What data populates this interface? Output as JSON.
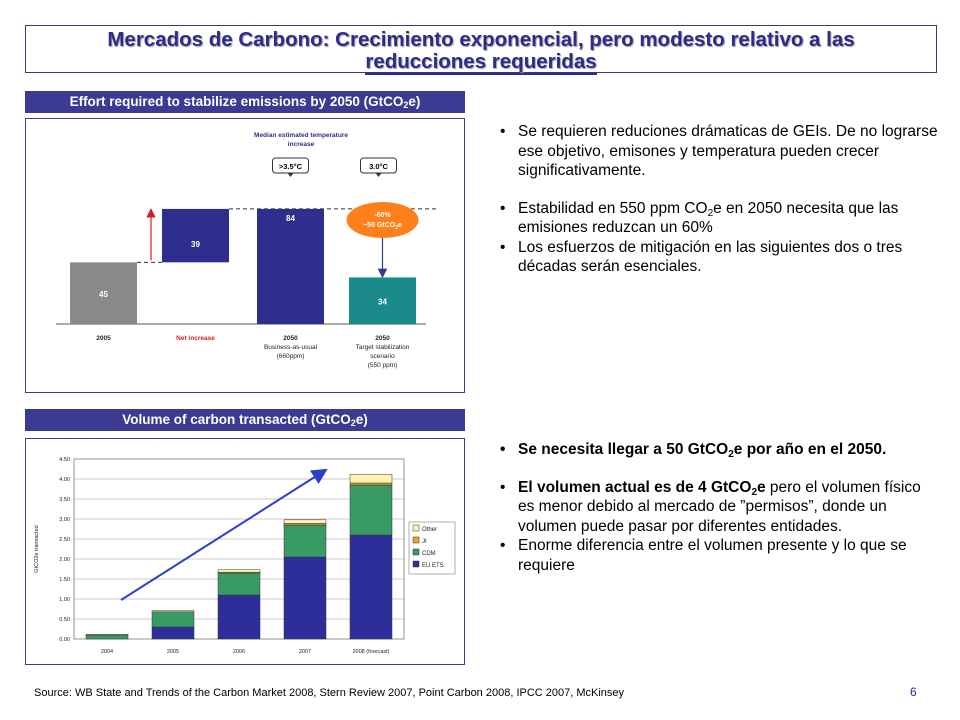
{
  "title": {
    "line1": "Mercados de Carbono: Crecimiento exponencial, pero modesto relativo a las",
    "line2": "reducciones requeridas"
  },
  "panel1": {
    "header_main": "Effort required to stabilize emissions by 2050 (GtCO",
    "header_sub": "2",
    "header_end": "e)"
  },
  "panel2": {
    "header_main": "Volume of carbon transacted (GtCO",
    "header_sub": "2",
    "header_end": "e)"
  },
  "bullets_top": [
    {
      "text": "Se requieren reduciones drámaticas de GEIs. De no lograrse ese objetivo, emisones y temperatura pueden crecer significativamente."
    },
    {
      "pre": "Estabilidad en 550 ppm CO",
      "sub": "2",
      "post": "e en 2050 necesita que las emisiones reduzcan un 60%"
    },
    {
      "text": "Los esfuerzos de mitigación en las siguientes dos o tres décadas serán esenciales."
    }
  ],
  "bullets_bottom": [
    {
      "pre": "Se necesita llegar a 50 GtCO",
      "sub": "2",
      "post": "e por año en el 2050."
    },
    {
      "pre": "El volumen actual es de 4 GtCO",
      "sub": "2",
      "post": "e",
      "rest": " pero el volumen físico es menor debido al mercado de ”permisos”, donde un volumen puede pasar por diferentes entidades."
    },
    {
      "text": "Enorme diferencia entre el volumen presente y lo que se requiere"
    }
  ],
  "source": "Source: WB State and Trends of the Carbon Market 2008, Stern Review 2007, Point Carbon 2008, IPCC 2007, McKinsey",
  "page_number": "6",
  "chart_data": [
    {
      "type": "bar",
      "subtype": "waterfall",
      "annotation_title": "Median estimated temperature increase",
      "categories": [
        "2005",
        "Net increase",
        "2050 Business-as-usual (660ppm)",
        "2050 Target stabilization scenario (550 ppm)"
      ],
      "category_lines": [
        [
          "2005"
        ],
        [
          "Net increase"
        ],
        [
          "2050",
          "Business-as-usual",
          "(660ppm)"
        ],
        [
          "2050",
          "Target stabilization",
          "scenario",
          "(550 ppm)"
        ]
      ],
      "values": [
        45,
        39,
        84,
        34
      ],
      "bar_colors": [
        "#8a8a8a",
        "#2e2e8e",
        "#2e2e8e",
        "#1a8a8a"
      ],
      "temperature_labels": [
        ">3.5°C",
        "3.0°C"
      ],
      "reduction_label_line1": "-60%",
      "reduction_label_line2": "~50 GtCO",
      "reduction_label_sub": "2",
      "reduction_label_end": "e",
      "net_increase_color": "#cc2222",
      "reduction_color": "#ff7f1a"
    },
    {
      "type": "bar",
      "subtype": "stacked",
      "categories": [
        "2004",
        "2005",
        "2006",
        "2007",
        "2008 (forecast)"
      ],
      "ylabel": "GtCO2e transacted",
      "ylim": [
        0,
        4.5
      ],
      "yticks": [
        "0.00",
        "0.50",
        "1.00",
        "1.50",
        "2.00",
        "2.50",
        "3.00",
        "3.50",
        "4.00",
        "4.50"
      ],
      "series": [
        {
          "name": "EU ETS",
          "color": "#2e2e9a",
          "values": [
            0.0,
            0.3,
            1.1,
            2.05,
            2.6
          ]
        },
        {
          "name": "CDM",
          "color": "#3a9a66",
          "values": [
            0.1,
            0.38,
            0.55,
            0.8,
            1.25
          ]
        },
        {
          "name": "JI",
          "color": "#f0a030",
          "values": [
            0.0,
            0.0,
            0.02,
            0.04,
            0.05
          ]
        },
        {
          "name": "Other",
          "color": "#fff5b0",
          "values": [
            0.02,
            0.03,
            0.06,
            0.09,
            0.22
          ]
        }
      ],
      "legend_order": [
        "Other",
        "JI",
        "CDM",
        "EU ETS"
      ],
      "legend_position": "right",
      "trend_arrow": true
    }
  ]
}
